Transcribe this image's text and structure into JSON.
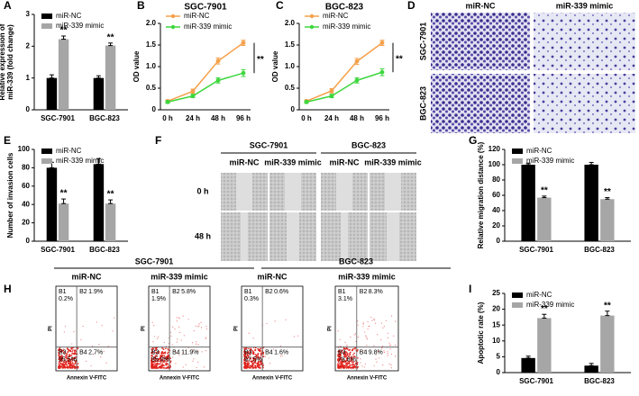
{
  "chart_data": [
    {
      "panel_label": "A",
      "type": "bar",
      "y_label": [
        "Relative expression of",
        "miR-339 (fold change)"
      ],
      "categories": [
        "SGC-7901",
        "BGC-823"
      ],
      "series": [
        {
          "name": "miR-NC",
          "color": "#000000",
          "values": [
            1.0,
            1.0
          ],
          "errors": [
            0.1,
            0.07
          ]
        },
        {
          "name": "miR-339 mimic",
          "color": "#a6a6a6",
          "values": [
            2.22,
            2.02
          ],
          "errors": [
            0.1,
            0.08
          ]
        }
      ],
      "ylim": [
        0,
        3
      ],
      "yticks": [
        0,
        1,
        2,
        3
      ],
      "annotations": [
        "**",
        "**"
      ]
    },
    {
      "panel_label": "B",
      "type": "line",
      "title": "SGC-7901",
      "y_label": [
        "OD value"
      ],
      "categories": [
        "0 h",
        "24 h",
        "48 h",
        "96 h"
      ],
      "series": [
        {
          "name": "miR-NC",
          "color": "#f5a04a",
          "values": [
            0.2,
            0.43,
            1.13,
            1.55
          ],
          "errors": [
            0.03,
            0.05,
            0.07,
            0.06
          ]
        },
        {
          "name": "miR-339 mimic",
          "color": "#3ed63e",
          "values": [
            0.18,
            0.32,
            0.68,
            0.85
          ],
          "errors": [
            0.03,
            0.04,
            0.06,
            0.08
          ]
        }
      ],
      "ylim": [
        0,
        2
      ],
      "yticks": [
        0,
        0.5,
        {
          "value": 1,
          "label": "1.0"
        },
        1.5,
        {
          "value": 2,
          "label": "2.0"
        }
      ],
      "annotations": [
        "**"
      ]
    },
    {
      "panel_label": "C",
      "type": "line",
      "title": "BGC-823",
      "y_label": [
        "OD value"
      ],
      "categories": [
        "0 h",
        "24 h",
        "48 h",
        "96 h"
      ],
      "series": [
        {
          "name": "miR-NC",
          "color": "#f5a04a",
          "values": [
            0.2,
            0.44,
            1.12,
            1.55
          ],
          "errors": [
            0.03,
            0.05,
            0.07,
            0.06
          ]
        },
        {
          "name": "miR-339 mimic",
          "color": "#3ed63e",
          "values": [
            0.18,
            0.32,
            0.68,
            0.87
          ],
          "errors": [
            0.03,
            0.04,
            0.06,
            0.08
          ]
        }
      ],
      "ylim": [
        0,
        2
      ],
      "yticks": [
        0,
        0.5,
        {
          "value": 1,
          "label": "1.0"
        },
        1.5,
        {
          "value": 2,
          "label": "2.0"
        }
      ],
      "annotations": [
        "**"
      ]
    },
    {
      "panel_label": "E",
      "type": "bar",
      "y_label": [
        "Number of invasion cells"
      ],
      "categories": [
        "SGC-7901",
        "BGC-823"
      ],
      "series": [
        {
          "name": "miR-NC",
          "color": "#000000",
          "values": [
            80,
            84
          ],
          "errors": [
            6,
            6
          ]
        },
        {
          "name": "miR-339 mimic",
          "color": "#a6a6a6",
          "values": [
            41,
            41
          ],
          "errors": [
            5,
            4
          ]
        }
      ],
      "ylim": [
        0,
        100
      ],
      "yticks": [
        0,
        20,
        40,
        60,
        80,
        100
      ],
      "annotations": [
        "**",
        "**"
      ]
    },
    {
      "panel_label": "G",
      "type": "bar",
      "y_label": [
        "Relative migration distance (%)"
      ],
      "categories": [
        "SGC-7901",
        "BGC-823"
      ],
      "series": [
        {
          "name": "miR-NC",
          "color": "#000000",
          "values": [
            100,
            100
          ],
          "errors": [
            2,
            3
          ]
        },
        {
          "name": "miR-339 mimic",
          "color": "#a6a6a6",
          "values": [
            57,
            55
          ],
          "errors": [
            2,
            2
          ]
        }
      ],
      "ylim": [
        0,
        120
      ],
      "yticks": [
        0,
        20,
        40,
        60,
        80,
        100,
        120
      ],
      "annotations": [
        "**",
        "**"
      ]
    },
    {
      "panel_label": "I",
      "type": "bar",
      "y_label": [
        "Apoptotic rate (%)"
      ],
      "categories": [
        "SGC-7901",
        "BGC-823"
      ],
      "series": [
        {
          "name": "miR-NC",
          "color": "#000000",
          "values": [
            4.6,
            2.2
          ],
          "errors": [
            0.6,
            0.7
          ]
        },
        {
          "name": "miR-339 mimic",
          "color": "#a6a6a6",
          "values": [
            17.2,
            18.0
          ],
          "errors": [
            1.2,
            1.4
          ]
        }
      ],
      "ylim": [
        0,
        25
      ],
      "yticks": [
        0,
        5,
        10,
        15,
        20,
        25
      ],
      "annotations": [
        "**",
        "**"
      ]
    }
  ],
  "image_panels": {
    "D": {
      "panel_label": "D",
      "columns": [
        "miR-NC",
        "miR-339 mimic"
      ],
      "rows": [
        "SGC-7901",
        "BGC-823"
      ]
    },
    "F": {
      "panel_label": "F",
      "groups": [
        "SGC-7901",
        "BGC-823"
      ],
      "columns": [
        "miR-NC",
        "miR-339 mimic",
        "miR-NC",
        "miR-339 mimic"
      ],
      "rows": [
        "0 h",
        "48 h"
      ]
    },
    "H": {
      "panel_label": "H",
      "groups": [
        "SGC-7901",
        "BGC-823"
      ],
      "columns": [
        "miR-NC",
        "miR-339 mimic",
        "miR-NC",
        "miR-339 mimic"
      ],
      "x_label": "Annexin V-FITC",
      "y_label": "PI",
      "plots": [
        {
          "quadrants": [
            [
              "B1",
              "0.2%"
            ],
            [
              "B2",
              "1.9%"
            ],
            [
              "B3",
              "95.5%"
            ],
            [
              "B4",
              "2.7%"
            ]
          ]
        },
        {
          "quadrants": [
            [
              "B1",
              "1.9%"
            ],
            [
              "B2",
              "5.8%"
            ],
            [
              "B3",
              "85.0%"
            ],
            [
              "B4",
              "11.9%"
            ]
          ]
        },
        {
          "quadrants": [
            [
              "B1",
              "0.3%"
            ],
            [
              "B2",
              "0.6%"
            ],
            [
              "B3",
              "97.5%"
            ],
            [
              "B4",
              "1.6%"
            ]
          ]
        },
        {
          "quadrants": [
            [
              "B1",
              "3.1%"
            ],
            [
              "B2",
              "8.3%"
            ],
            [
              "B3",
              "78.8%"
            ],
            [
              "B4",
              "9.8%"
            ]
          ]
        }
      ]
    }
  }
}
